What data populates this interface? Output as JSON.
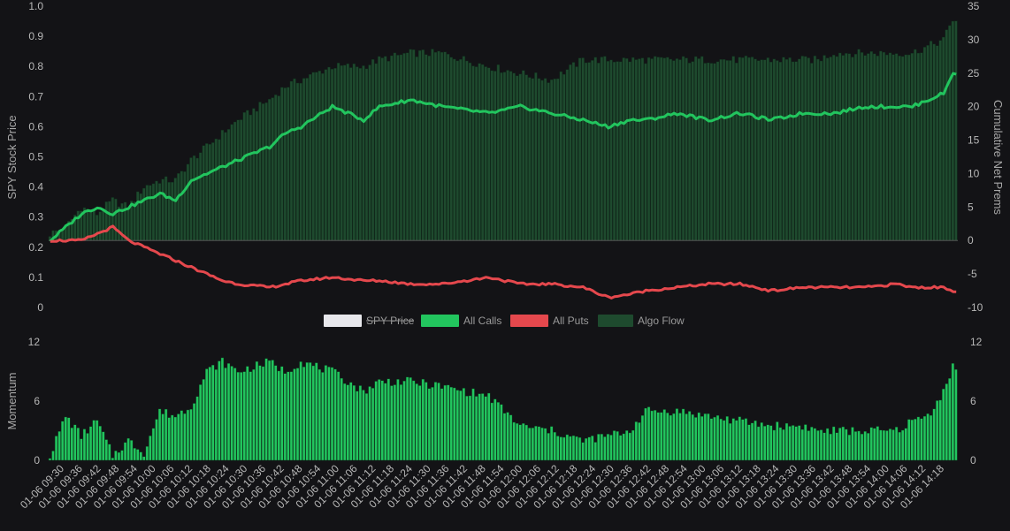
{
  "chart_data": [
    {
      "type": "line",
      "title": "",
      "ylabel_left": "SPY Stock Price",
      "ylabel_right": "Cumulative Net Prems",
      "yticks_left": [
        "0",
        "0.1",
        "0.2",
        "0.3",
        "0.4",
        "0.5",
        "0.6",
        "0.7",
        "0.8",
        "0.9",
        "1.0"
      ],
      "yticks_right": [
        "-10",
        "-5",
        "0",
        "5",
        "10",
        "15",
        "20",
        "25",
        "30",
        "35"
      ],
      "ylim_left": [
        0,
        1.0
      ],
      "ylim_right": [
        -10,
        35
      ],
      "x_count": 290,
      "series": [
        {
          "name": "SPY Price",
          "hidden": true,
          "color": "#e8e8ec",
          "values": []
        },
        {
          "name": "All Calls",
          "color": "#22c55e",
          "x": [
            0,
            5,
            10,
            15,
            20,
            25,
            30,
            35,
            40,
            45,
            50,
            55,
            60,
            70,
            75,
            80,
            90,
            100,
            105,
            115,
            125,
            140,
            150,
            160,
            170,
            178,
            185,
            190,
            200,
            210,
            220,
            230,
            240,
            245,
            250,
            260,
            270,
            275,
            280,
            285,
            288
          ],
          "values": [
            0,
            2,
            4,
            5,
            4,
            5,
            6,
            7,
            6,
            9,
            10,
            11,
            12,
            14,
            16,
            17,
            20,
            18,
            20,
            21,
            20,
            19,
            20,
            19,
            18,
            17,
            18,
            18,
            19,
            18,
            19,
            18,
            19,
            19,
            19,
            20,
            20,
            20,
            21,
            22,
            25
          ]
        },
        {
          "name": "All Puts",
          "color": "#e5484d",
          "x": [
            0,
            5,
            10,
            15,
            20,
            25,
            30,
            35,
            40,
            45,
            50,
            55,
            60,
            70,
            75,
            80,
            90,
            100,
            105,
            115,
            125,
            140,
            150,
            160,
            170,
            178,
            185,
            190,
            200,
            210,
            220,
            230,
            240,
            245,
            250,
            260,
            270,
            275,
            280,
            285,
            288
          ],
          "values": [
            0,
            0,
            0,
            1,
            2,
            0,
            -1,
            -2,
            -3,
            -4,
            -5,
            -6,
            -6.5,
            -7,
            -6.5,
            -6,
            -5.5,
            -6,
            -6,
            -6.5,
            -6.5,
            -5.5,
            -6.5,
            -6.5,
            -7,
            -8.5,
            -8,
            -7.5,
            -7,
            -6.5,
            -6.5,
            -7.5,
            -7,
            -7,
            -7,
            -7,
            -6.5,
            -7,
            -7,
            -7,
            -7.5
          ]
        },
        {
          "name": "Algo Flow",
          "color": "#1e4a2e",
          "x": [
            0,
            5,
            10,
            15,
            20,
            25,
            30,
            35,
            40,
            45,
            50,
            55,
            60,
            70,
            75,
            80,
            90,
            100,
            105,
            115,
            125,
            140,
            150,
            160,
            170,
            178,
            185,
            190,
            200,
            210,
            220,
            230,
            240,
            245,
            250,
            260,
            270,
            275,
            280,
            285,
            288
          ],
          "values": [
            1,
            2,
            5,
            4,
            6,
            5,
            8,
            9,
            9,
            12,
            14,
            16,
            18,
            21,
            23,
            24,
            26,
            26,
            27,
            28,
            28,
            26,
            25,
            24,
            27,
            27,
            27,
            27,
            27,
            27,
            27,
            27,
            27,
            27,
            28,
            28,
            28,
            28,
            29,
            30,
            33
          ]
        }
      ],
      "legend": [
        {
          "label": "SPY Price",
          "color": "#e8e8ec",
          "hidden": true
        },
        {
          "label": "All Calls",
          "color": "#22c55e",
          "hidden": false
        },
        {
          "label": "All Puts",
          "color": "#e5484d",
          "hidden": false
        },
        {
          "label": "Algo Flow",
          "color": "#1e4a2e",
          "hidden": false
        }
      ]
    },
    {
      "type": "bar",
      "title": "",
      "ylabel_left": "Momentum",
      "yticks_left": [
        "0",
        "6",
        "12"
      ],
      "yticks_right": [
        "0",
        "6",
        "12"
      ],
      "ylim": [
        0,
        12
      ],
      "color": "#22c55e",
      "x_count": 290,
      "x": [
        0,
        5,
        10,
        15,
        20,
        25,
        30,
        35,
        40,
        45,
        50,
        55,
        60,
        70,
        75,
        80,
        90,
        100,
        105,
        115,
        125,
        140,
        150,
        160,
        170,
        178,
        185,
        190,
        200,
        210,
        220,
        230,
        240,
        245,
        250,
        260,
        270,
        275,
        280,
        285,
        288
      ],
      "values": [
        0.5,
        4.5,
        2.5,
        4,
        0.5,
        2,
        0.8,
        5,
        4.5,
        5.5,
        9,
        10,
        9,
        10,
        9,
        10,
        9,
        7,
        8,
        8,
        7.5,
        6.5,
        3.5,
        3,
        2,
        2.5,
        3,
        5,
        5,
        4.5,
        4,
        3.5,
        3.5,
        3,
        3,
        3,
        3,
        4,
        4.5,
        7,
        9.5
      ],
      "tick_labels": [
        "01-06 09:30",
        "01-06 09:36",
        "01-06 09:42",
        "01-06 09:48",
        "01-06 09:54",
        "01-06 10:00",
        "01-06 10:06",
        "01-06 10:12",
        "01-06 10:18",
        "01-06 10:24",
        "01-06 10:30",
        "01-06 10:36",
        "01-06 10:42",
        "01-06 10:48",
        "01-06 10:54",
        "01-06 11:00",
        "01-06 11:06",
        "01-06 11:12",
        "01-06 11:18",
        "01-06 11:24",
        "01-06 11:30",
        "01-06 11:36",
        "01-06 11:42",
        "01-06 11:48",
        "01-06 11:54",
        "01-06 12:00",
        "01-06 12:06",
        "01-06 12:12",
        "01-06 12:18",
        "01-06 12:24",
        "01-06 12:30",
        "01-06 12:36",
        "01-06 12:42",
        "01-06 12:48",
        "01-06 12:54",
        "01-06 13:00",
        "01-06 13:06",
        "01-06 13:12",
        "01-06 13:18",
        "01-06 13:24",
        "01-06 13:30",
        "01-06 13:36",
        "01-06 13:42",
        "01-06 13:48",
        "01-06 13:54",
        "01-06 14:00",
        "01-06 14:06",
        "01-06 14:12",
        "01-06 14:18"
      ]
    }
  ],
  "colors": {
    "background": "#131316",
    "axis_text": "#b8b8b8",
    "zero_line": "#555555",
    "bar_edge": "#0f2a1a"
  }
}
